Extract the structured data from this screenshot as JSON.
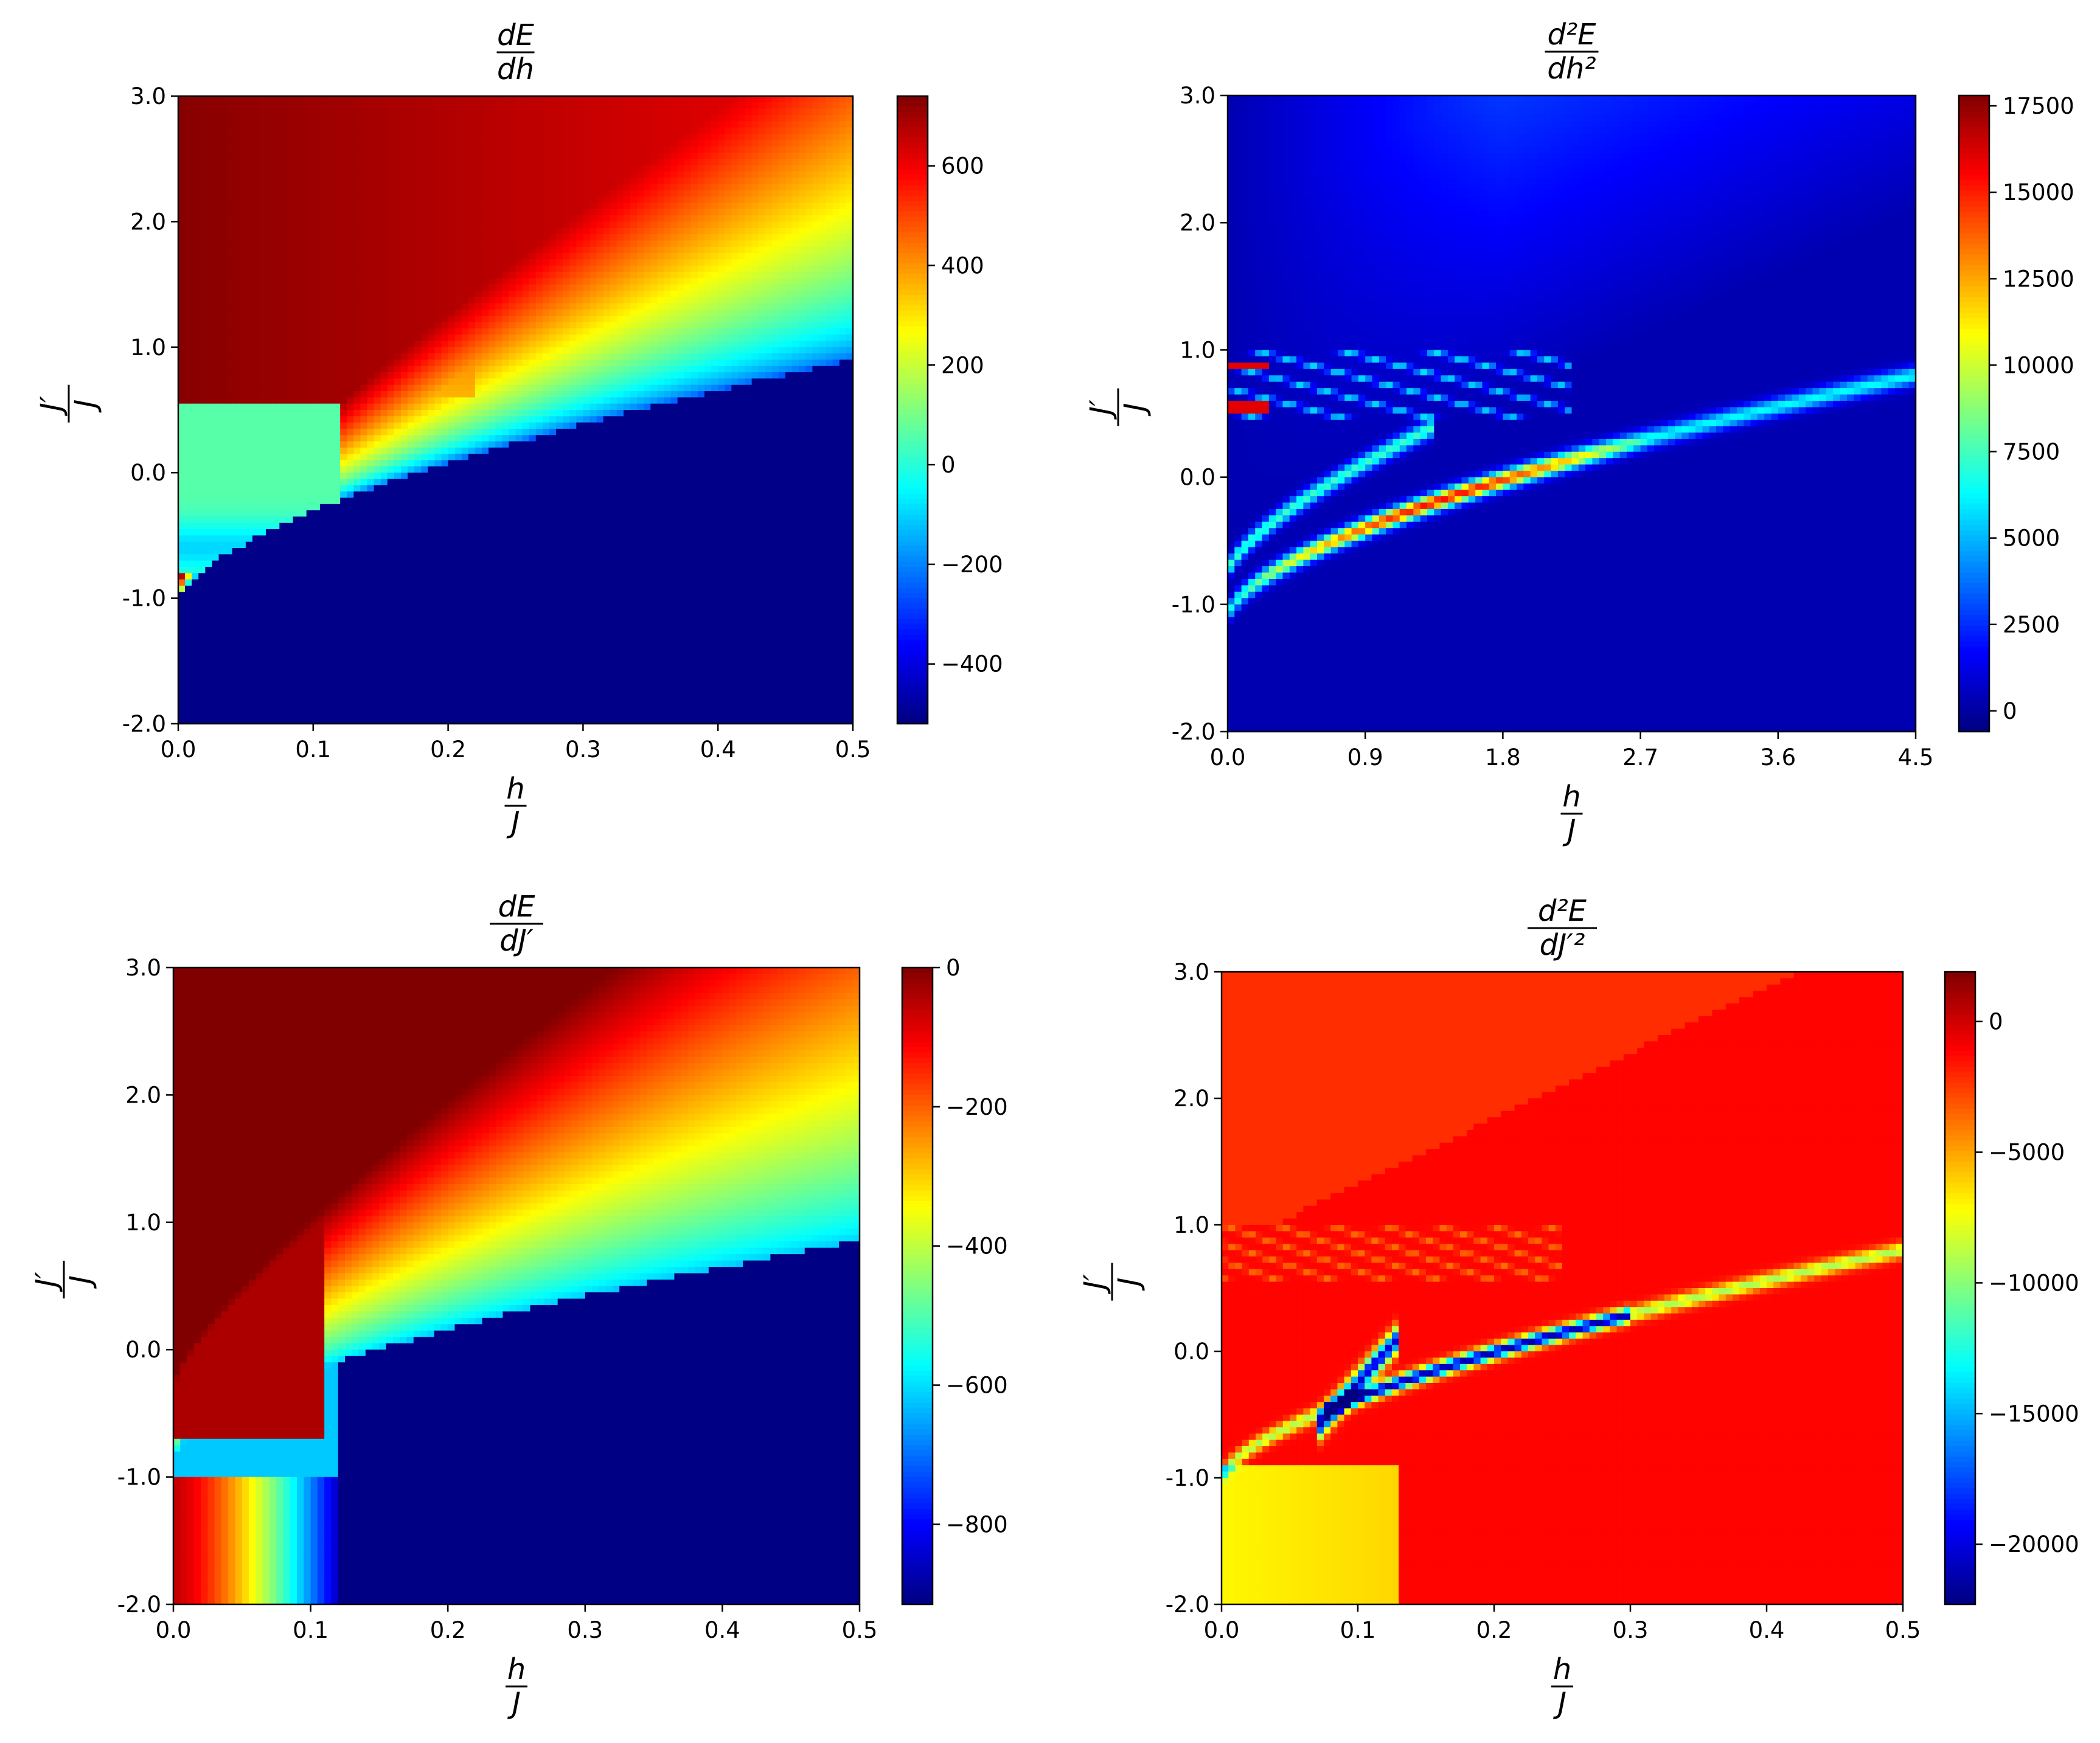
{
  "chart_data": [
    {
      "type": "heatmap",
      "title": {
        "num": "dE",
        "den": "dh"
      },
      "xlabel": {
        "num": "h",
        "den": "J"
      },
      "ylabel": {
        "num": "J′",
        "den": "J"
      },
      "x_range": [
        0.0,
        0.5
      ],
      "y_range": [
        -2.0,
        3.0
      ],
      "x_ticks": [
        "0.0",
        "0.1",
        "0.2",
        "0.3",
        "0.4",
        "0.5"
      ],
      "y_ticks": [
        "3.0",
        "2.0",
        "1.0",
        "0.0",
        "-1.0",
        "-2.0"
      ],
      "colorbar": {
        "range": [
          -520,
          740
        ],
        "ticks": [
          {
            "value": 600,
            "label": "600"
          },
          {
            "value": 400,
            "label": "400"
          },
          {
            "value": 200,
            "label": "200"
          },
          {
            "value": 0,
            "label": "0"
          },
          {
            "value": -200,
            "label": "−200"
          },
          {
            "value": -400,
            "label": "−400"
          }
        ]
      },
      "colormap": "jet",
      "field": "dEdh"
    },
    {
      "type": "heatmap",
      "title": {
        "num": "d²E",
        "den": "dh²"
      },
      "xlabel": {
        "num": "h",
        "den": "J"
      },
      "ylabel": {
        "num": "J′",
        "den": "J"
      },
      "x_range": [
        0.0,
        4.5
      ],
      "y_range": [
        -2.0,
        3.0
      ],
      "x_ticks": [
        "0.0",
        "0.9",
        "1.8",
        "2.7",
        "3.6",
        "4.5"
      ],
      "y_ticks": [
        "3.0",
        "2.0",
        "1.0",
        "0.0",
        "-1.0",
        "-2.0"
      ],
      "colorbar": {
        "range": [
          -600,
          17800
        ],
        "ticks": [
          {
            "value": 17500,
            "label": "17500"
          },
          {
            "value": 15000,
            "label": "15000"
          },
          {
            "value": 12500,
            "label": "12500"
          },
          {
            "value": 10000,
            "label": "10000"
          },
          {
            "value": 7500,
            "label": "7500"
          },
          {
            "value": 5000,
            "label": "5000"
          },
          {
            "value": 2500,
            "label": "2500"
          },
          {
            "value": 0,
            "label": "0"
          }
        ]
      },
      "colormap": "jet",
      "field": "d2Edh2"
    },
    {
      "type": "heatmap",
      "title": {
        "num": "dE",
        "den": "dJ′"
      },
      "xlabel": {
        "num": "h",
        "den": "J"
      },
      "ylabel": {
        "num": "J′",
        "den": "J"
      },
      "x_range": [
        0.0,
        0.5
      ],
      "y_range": [
        -2.0,
        3.0
      ],
      "x_ticks": [
        "0.0",
        "0.1",
        "0.2",
        "0.3",
        "0.4",
        "0.5"
      ],
      "y_ticks": [
        "3.0",
        "2.0",
        "1.0",
        "0.0",
        "-1.0",
        "-2.0"
      ],
      "colorbar": {
        "range": [
          -915,
          0
        ],
        "ticks": [
          {
            "value": 0,
            "label": "0"
          },
          {
            "value": -200,
            "label": "−200"
          },
          {
            "value": -400,
            "label": "−400"
          },
          {
            "value": -600,
            "label": "−600"
          },
          {
            "value": -800,
            "label": "−800"
          }
        ]
      },
      "colormap": "jet",
      "field": "dEdJ"
    },
    {
      "type": "heatmap",
      "title": {
        "num": "d²E",
        "den": "dJ′²"
      },
      "xlabel": {
        "num": "h",
        "den": "J"
      },
      "ylabel": {
        "num": "J′",
        "den": "J"
      },
      "x_range": [
        0.0,
        0.5
      ],
      "y_range": [
        -2.0,
        3.0
      ],
      "x_ticks": [
        "0.0",
        "0.1",
        "0.2",
        "0.3",
        "0.4",
        "0.5"
      ],
      "y_ticks": [
        "3.0",
        "2.0",
        "1.0",
        "0.0",
        "-1.0",
        "-2.0"
      ],
      "colorbar": {
        "range": [
          -22300,
          1900
        ],
        "ticks": [
          {
            "value": 0,
            "label": "0"
          },
          {
            "value": -5000,
            "label": "−5000"
          },
          {
            "value": -10000,
            "label": "−10000"
          },
          {
            "value": -15000,
            "label": "−15000"
          },
          {
            "value": -20000,
            "label": "−20000"
          }
        ]
      },
      "colormap": "jet",
      "field": "d2EdJ2"
    }
  ]
}
